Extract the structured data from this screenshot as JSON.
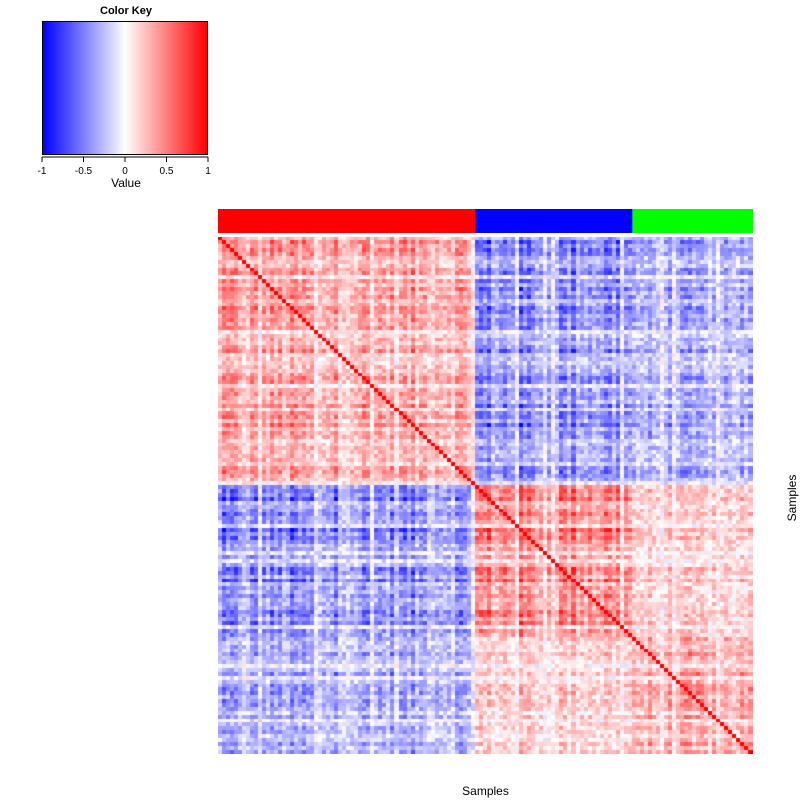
{
  "chart_data": {
    "type": "heatmap",
    "title": "",
    "xlabel": "Samples",
    "ylabel": "Samples",
    "n_samples": 133,
    "groups": [
      {
        "color": "#ff0000",
        "count": 64
      },
      {
        "color": "#0000ff",
        "count": 39
      },
      {
        "color": "#00ff00",
        "count": 30
      }
    ],
    "diagonal_value": 1,
    "block_correlation": {
      "within_red": 0.35,
      "within_blue": 0.5,
      "within_green": 0.3,
      "red_blue": -0.45,
      "red_green": -0.3,
      "blue_green": 0.2
    },
    "color_key": {
      "title": "Color Key",
      "xlabel": "Value",
      "range": [
        -1,
        1
      ],
      "ticks": [
        "-1",
        "-0.5",
        "0",
        "0.5",
        "1"
      ],
      "tick_values": [
        -1,
        -0.5,
        0,
        0.5,
        1
      ],
      "colors": {
        "low": "#0000ff",
        "mid": "#ffffff",
        "high": "#ff0000"
      }
    }
  }
}
